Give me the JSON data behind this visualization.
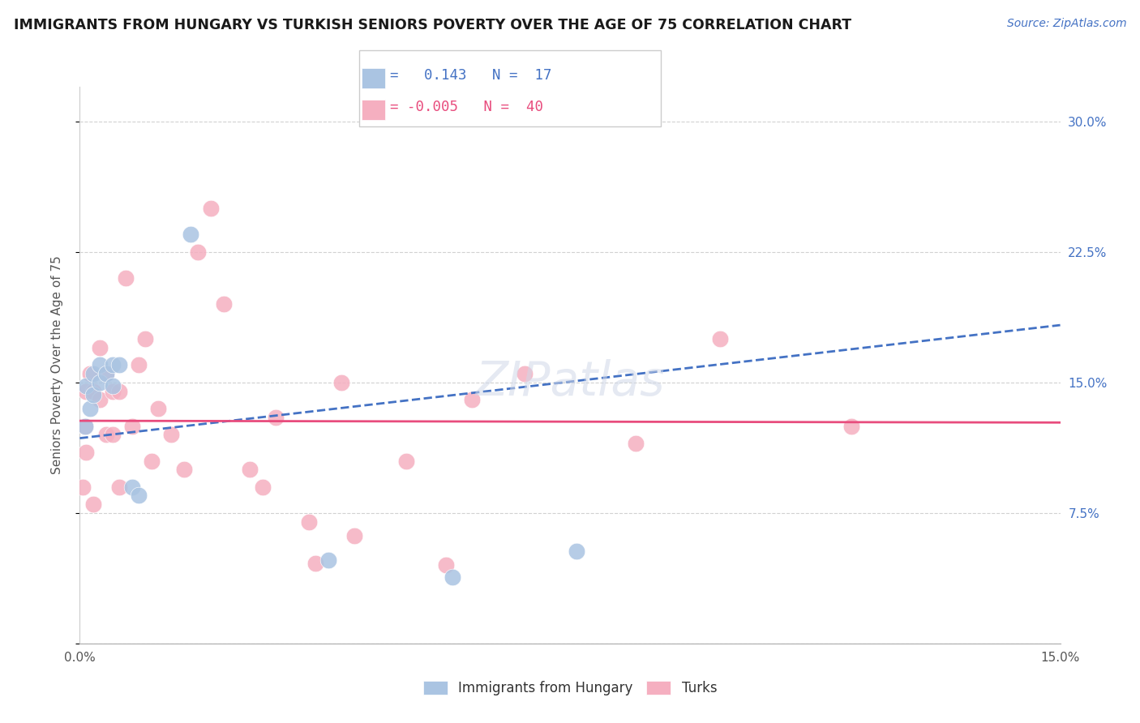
{
  "title": "IMMIGRANTS FROM HUNGARY VS TURKISH SENIORS POVERTY OVER THE AGE OF 75 CORRELATION CHART",
  "source_text": "Source: ZipAtlas.com",
  "ylabel": "Seniors Poverty Over the Age of 75",
  "xlim": [
    0.0,
    0.15
  ],
  "ylim": [
    0.0,
    0.32
  ],
  "xticks": [
    0.0,
    0.015,
    0.03,
    0.045,
    0.06,
    0.075,
    0.09,
    0.105,
    0.12,
    0.135,
    0.15
  ],
  "xtick_labels": [
    "0.0%",
    "",
    "",
    "",
    "",
    "",
    "",
    "",
    "",
    "",
    "15.0%"
  ],
  "yticks": [
    0.0,
    0.075,
    0.15,
    0.225,
    0.3
  ],
  "ytick_labels": [
    "",
    "7.5%",
    "15.0%",
    "22.5%",
    "30.0%"
  ],
  "grid_color": "#cccccc",
  "background_color": "#ffffff",
  "watermark": "ZIPatlas",
  "hungary_r": "0.143",
  "hungary_n": "17",
  "turks_r": "-0.005",
  "turks_n": "40",
  "hungary_color": "#aac4e2",
  "turks_color": "#f5afc0",
  "hungary_line_color": "#4472c4",
  "turks_line_color": "#e84c7d",
  "hungary_x": [
    0.0008,
    0.001,
    0.0015,
    0.002,
    0.002,
    0.003,
    0.003,
    0.004,
    0.005,
    0.005,
    0.006,
    0.008,
    0.009,
    0.017,
    0.038,
    0.057,
    0.076
  ],
  "hungary_y": [
    0.125,
    0.148,
    0.135,
    0.155,
    0.143,
    0.16,
    0.15,
    0.155,
    0.16,
    0.148,
    0.16,
    0.09,
    0.085,
    0.235,
    0.048,
    0.038,
    0.053
  ],
  "turks_x": [
    0.0005,
    0.0008,
    0.001,
    0.001,
    0.0015,
    0.002,
    0.002,
    0.003,
    0.003,
    0.004,
    0.004,
    0.005,
    0.005,
    0.006,
    0.006,
    0.007,
    0.008,
    0.009,
    0.01,
    0.011,
    0.012,
    0.014,
    0.016,
    0.018,
    0.02,
    0.022,
    0.026,
    0.028,
    0.03,
    0.035,
    0.036,
    0.04,
    0.042,
    0.05,
    0.056,
    0.06,
    0.068,
    0.085,
    0.098,
    0.118
  ],
  "turks_y": [
    0.09,
    0.125,
    0.145,
    0.11,
    0.155,
    0.145,
    0.08,
    0.14,
    0.17,
    0.155,
    0.12,
    0.145,
    0.12,
    0.145,
    0.09,
    0.21,
    0.125,
    0.16,
    0.175,
    0.105,
    0.135,
    0.12,
    0.1,
    0.225,
    0.25,
    0.195,
    0.1,
    0.09,
    0.13,
    0.07,
    0.046,
    0.15,
    0.062,
    0.105,
    0.045,
    0.14,
    0.155,
    0.115,
    0.175,
    0.125
  ],
  "hungary_line_x0": 0.0,
  "hungary_line_y0": 0.118,
  "hungary_line_x1": 0.15,
  "hungary_line_y1": 0.183,
  "turks_line_x0": 0.0,
  "turks_line_y0": 0.128,
  "turks_line_x1": 0.15,
  "turks_line_y1": 0.127
}
